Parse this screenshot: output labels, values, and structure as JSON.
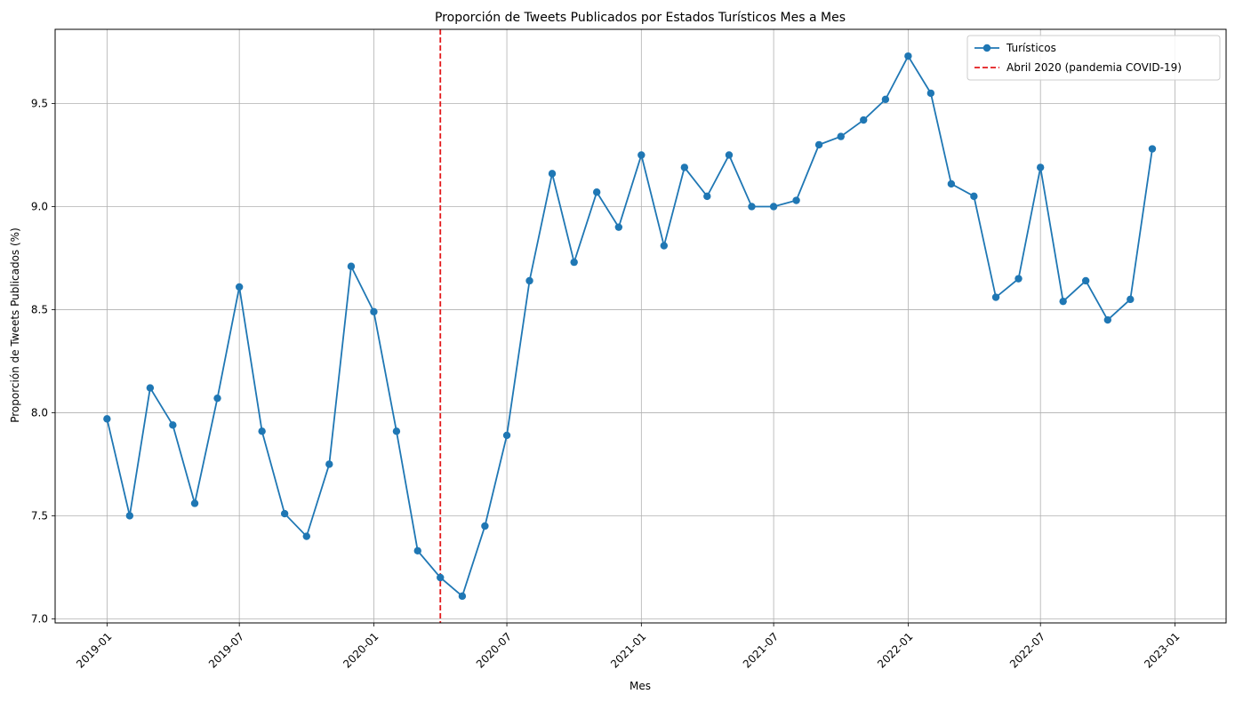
{
  "chart_data": {
    "type": "line",
    "title": "Proporción de Tweets Publicados por Estados Turísticos Mes a Mes",
    "xlabel": "Mes",
    "ylabel": "Proporción de Tweets Publicados (%)",
    "ylim": [
      6.98,
      9.86
    ],
    "xlim": [
      "2018-10-22",
      "2023-03-12"
    ],
    "grid": true,
    "legend_position": "top-right",
    "x_ticks": [
      "2019-01",
      "2019-07",
      "2020-01",
      "2020-07",
      "2021-01",
      "2021-07",
      "2022-01",
      "2022-07",
      "2023-01"
    ],
    "y_ticks": [
      "7.0",
      "7.5",
      "8.0",
      "8.5",
      "9.0",
      "9.5"
    ],
    "series": [
      {
        "name": "Turísticos",
        "color": "#1f77b4",
        "marker": "circle",
        "x": [
          "2019-01",
          "2019-02",
          "2019-03",
          "2019-04",
          "2019-05",
          "2019-06",
          "2019-07",
          "2019-08",
          "2019-09",
          "2019-10",
          "2019-11",
          "2019-12",
          "2020-01",
          "2020-02",
          "2020-03",
          "2020-04",
          "2020-05",
          "2020-06",
          "2020-07",
          "2020-08",
          "2020-09",
          "2020-10",
          "2020-11",
          "2020-12",
          "2021-01",
          "2021-02",
          "2021-03",
          "2021-04",
          "2021-05",
          "2021-06",
          "2021-07",
          "2021-08",
          "2021-09",
          "2021-10",
          "2021-11",
          "2021-12",
          "2022-01",
          "2022-02",
          "2022-03",
          "2022-04",
          "2022-05",
          "2022-06",
          "2022-07",
          "2022-08",
          "2022-09",
          "2022-10",
          "2022-11",
          "2022-12"
        ],
        "values": [
          7.97,
          7.5,
          8.12,
          7.94,
          7.56,
          8.07,
          8.61,
          7.91,
          7.51,
          7.4,
          7.75,
          8.71,
          8.49,
          7.91,
          7.33,
          7.2,
          7.11,
          7.45,
          7.89,
          8.64,
          9.16,
          8.73,
          9.07,
          8.9,
          9.25,
          8.81,
          9.19,
          9.05,
          9.25,
          9.0,
          9.0,
          9.03,
          9.3,
          9.34,
          9.42,
          9.52,
          9.73,
          9.55,
          9.11,
          9.05,
          8.56,
          8.65,
          9.19,
          8.54,
          8.64,
          8.45,
          8.55,
          9.28
        ]
      }
    ],
    "annotations": [
      {
        "type": "vline",
        "x": "2020-04-01",
        "color": "#e31a1c",
        "style": "dashed",
        "label": "Abril 2020 (pandemia COVID-19)"
      }
    ]
  }
}
